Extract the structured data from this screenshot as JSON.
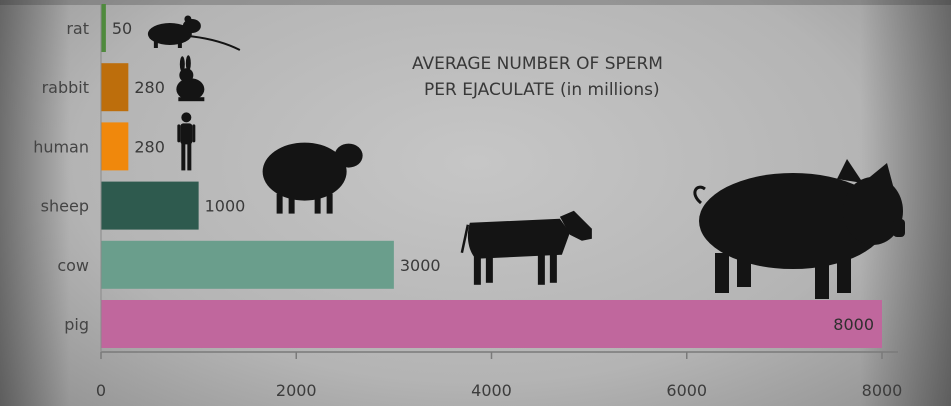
{
  "chart_data": {
    "type": "bar",
    "orientation": "horizontal",
    "title_lines": [
      "AVERAGE NUMBER OF SPERM",
      "PER EJACULATE (in millions)"
    ],
    "categories": [
      "rat",
      "rabbit",
      "human",
      "sheep",
      "cow",
      "pig"
    ],
    "values": [
      50,
      280,
      280,
      1000,
      3000,
      8000
    ],
    "value_labels": [
      "50",
      "280",
      "280",
      "1000",
      "3000",
      "8000"
    ],
    "colors": [
      "#4f8a3d",
      "#bd6e0c",
      "#f0880c",
      "#2e5a4e",
      "#6a9e8c",
      "#c0679d"
    ],
    "icons": [
      "rat-silhouette-icon",
      "rabbit-silhouette-icon",
      "human-silhouette-icon",
      "sheep-silhouette-icon",
      "cow-silhouette-icon",
      "pig-silhouette-icon"
    ],
    "xlim": [
      0,
      8000
    ],
    "xticks": [
      0,
      2000,
      4000,
      6000,
      8000
    ],
    "xtick_labels": [
      "0",
      "2000",
      "4000",
      "6000",
      "8000"
    ],
    "xlabel": "",
    "ylabel": "",
    "grid": false,
    "legend": "none"
  }
}
